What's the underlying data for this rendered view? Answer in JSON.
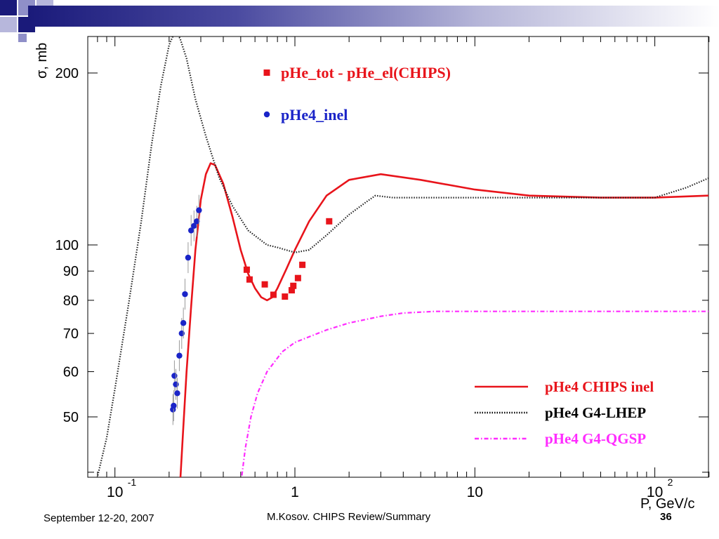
{
  "slide": {
    "footer_left": "September 12-20, 2007",
    "footer_center": "M.Kosov. CHIPS Review/Summary",
    "page_number": "36",
    "accent_colors": [
      "#1a1a7a",
      "#4a4aa0",
      "#b5b5d8"
    ]
  },
  "chart_data": {
    "type": "line",
    "ylabel": "σ, mb",
    "xlabel": "P, GeV/c",
    "x_scale": "log",
    "y_scale": "log",
    "xlim": [
      0.075,
      200
    ],
    "ylim": [
      38,
      240
    ],
    "x_tick_labels": [
      {
        "value": 0.1,
        "base": "10",
        "sup": "-1"
      },
      {
        "value": 1,
        "base": "1",
        "sup": ""
      },
      {
        "value": 10,
        "base": "10",
        "sup": ""
      },
      {
        "value": 100,
        "base": "10",
        "sup": "2"
      }
    ],
    "y_tick_labels": [
      {
        "value": 200,
        "label": "200"
      },
      {
        "value": 100,
        "label": "100"
      },
      {
        "value": 90,
        "label": "90"
      },
      {
        "value": 80,
        "label": "80"
      },
      {
        "value": 70,
        "label": "70"
      },
      {
        "value": 60,
        "label": "60"
      },
      {
        "value": 50,
        "label": "50"
      }
    ],
    "series": [
      {
        "name": "pHe4 CHIPS inel",
        "style": "solid",
        "color": "#e8141b",
        "points": [
          [
            0.23,
            38
          ],
          [
            0.24,
            48
          ],
          [
            0.25,
            60
          ],
          [
            0.265,
            78
          ],
          [
            0.28,
            98
          ],
          [
            0.3,
            120
          ],
          [
            0.32,
            133
          ],
          [
            0.34,
            139
          ],
          [
            0.36,
            138
          ],
          [
            0.4,
            128
          ],
          [
            0.45,
            112
          ],
          [
            0.5,
            98
          ],
          [
            0.55,
            89
          ],
          [
            0.6,
            84
          ],
          [
            0.65,
            81
          ],
          [
            0.7,
            80
          ],
          [
            0.75,
            81
          ],
          [
            0.8,
            84
          ],
          [
            0.9,
            91
          ],
          [
            1.0,
            98
          ],
          [
            1.2,
            110
          ],
          [
            1.5,
            122
          ],
          [
            2.0,
            130
          ],
          [
            3.0,
            133
          ],
          [
            5.0,
            130
          ],
          [
            10,
            125
          ],
          [
            20,
            122
          ],
          [
            50,
            121
          ],
          [
            100,
            121
          ],
          [
            200,
            122
          ]
        ]
      },
      {
        "name": "pHe4 G4-LHEP",
        "style": "dotted",
        "color": "#222222",
        "points": [
          [
            0.078,
            38
          ],
          [
            0.09,
            46
          ],
          [
            0.1,
            56
          ],
          [
            0.12,
            80
          ],
          [
            0.14,
            110
          ],
          [
            0.16,
            150
          ],
          [
            0.18,
            190
          ],
          [
            0.2,
            224
          ],
          [
            0.21,
            232
          ],
          [
            0.22,
            234
          ],
          [
            0.23,
            230
          ],
          [
            0.25,
            212
          ],
          [
            0.28,
            180
          ],
          [
            0.32,
            155
          ],
          [
            0.38,
            131
          ],
          [
            0.45,
            117
          ],
          [
            0.55,
            106
          ],
          [
            0.7,
            100
          ],
          [
            0.8,
            99
          ],
          [
            1.0,
            97
          ],
          [
            1.2,
            98
          ],
          [
            1.5,
            104
          ],
          [
            2.0,
            113
          ],
          [
            2.5,
            119
          ],
          [
            2.8,
            122
          ],
          [
            3.5,
            121
          ],
          [
            10,
            121
          ],
          [
            50,
            121
          ],
          [
            100,
            121
          ],
          [
            150,
            126
          ],
          [
            200,
            131
          ]
        ]
      },
      {
        "name": "pHe4 G4-QGSP",
        "style": "dashdot",
        "color": "#ff2bff",
        "points": [
          [
            0.5,
            38
          ],
          [
            0.53,
            44
          ],
          [
            0.57,
            50
          ],
          [
            0.62,
            55
          ],
          [
            0.7,
            60
          ],
          [
            0.85,
            65
          ],
          [
            1.0,
            67.5
          ],
          [
            1.5,
            71
          ],
          [
            2.0,
            73
          ],
          [
            3.0,
            75
          ],
          [
            4.0,
            76
          ],
          [
            6.0,
            76.5
          ],
          [
            10,
            76.5
          ],
          [
            50,
            76.5
          ],
          [
            200,
            76.5
          ]
        ]
      }
    ],
    "data_series": [
      {
        "name": "pHe_tot - pHe_el(CHIPS)",
        "marker": "square",
        "color": "#e8141b",
        "points": [
          [
            0.54,
            90.5
          ],
          [
            0.56,
            87
          ],
          [
            0.68,
            85.3
          ],
          [
            0.76,
            81.8
          ],
          [
            0.88,
            81.2
          ],
          [
            0.96,
            83.3
          ],
          [
            0.98,
            84.8
          ],
          [
            1.04,
            87.5
          ],
          [
            1.1,
            92.3
          ],
          [
            1.55,
            110
          ]
        ]
      },
      {
        "name": "pHe4_inel",
        "marker": "circle",
        "color": "#1a24c8",
        "points": [
          [
            0.21,
            51.5
          ],
          [
            0.212,
            52.3
          ],
          [
            0.214,
            59
          ],
          [
            0.218,
            57
          ],
          [
            0.222,
            55
          ],
          [
            0.228,
            64
          ],
          [
            0.235,
            70
          ],
          [
            0.24,
            73
          ],
          [
            0.245,
            82
          ],
          [
            0.255,
            95
          ],
          [
            0.265,
            106
          ],
          [
            0.275,
            108
          ],
          [
            0.285,
            110
          ],
          [
            0.293,
            115
          ]
        ]
      }
    ],
    "top_legend": [
      {
        "label": "pHe_tot - pHe_el(CHIPS)",
        "color": "#e8141b",
        "marker": "square"
      },
      {
        "label": "pHe4_inel",
        "color": "#1a24c8",
        "marker": "circle"
      }
    ],
    "bottom_legend": [
      {
        "label": "pHe4 CHIPS inel",
        "color": "#e8141b",
        "style": "solid"
      },
      {
        "label": "pHe4 G4-LHEP",
        "color": "#000000",
        "style": "dotted"
      },
      {
        "label": "pHe4 G4-QGSP",
        "color": "#ff2bff",
        "style": "dashdot"
      }
    ]
  }
}
